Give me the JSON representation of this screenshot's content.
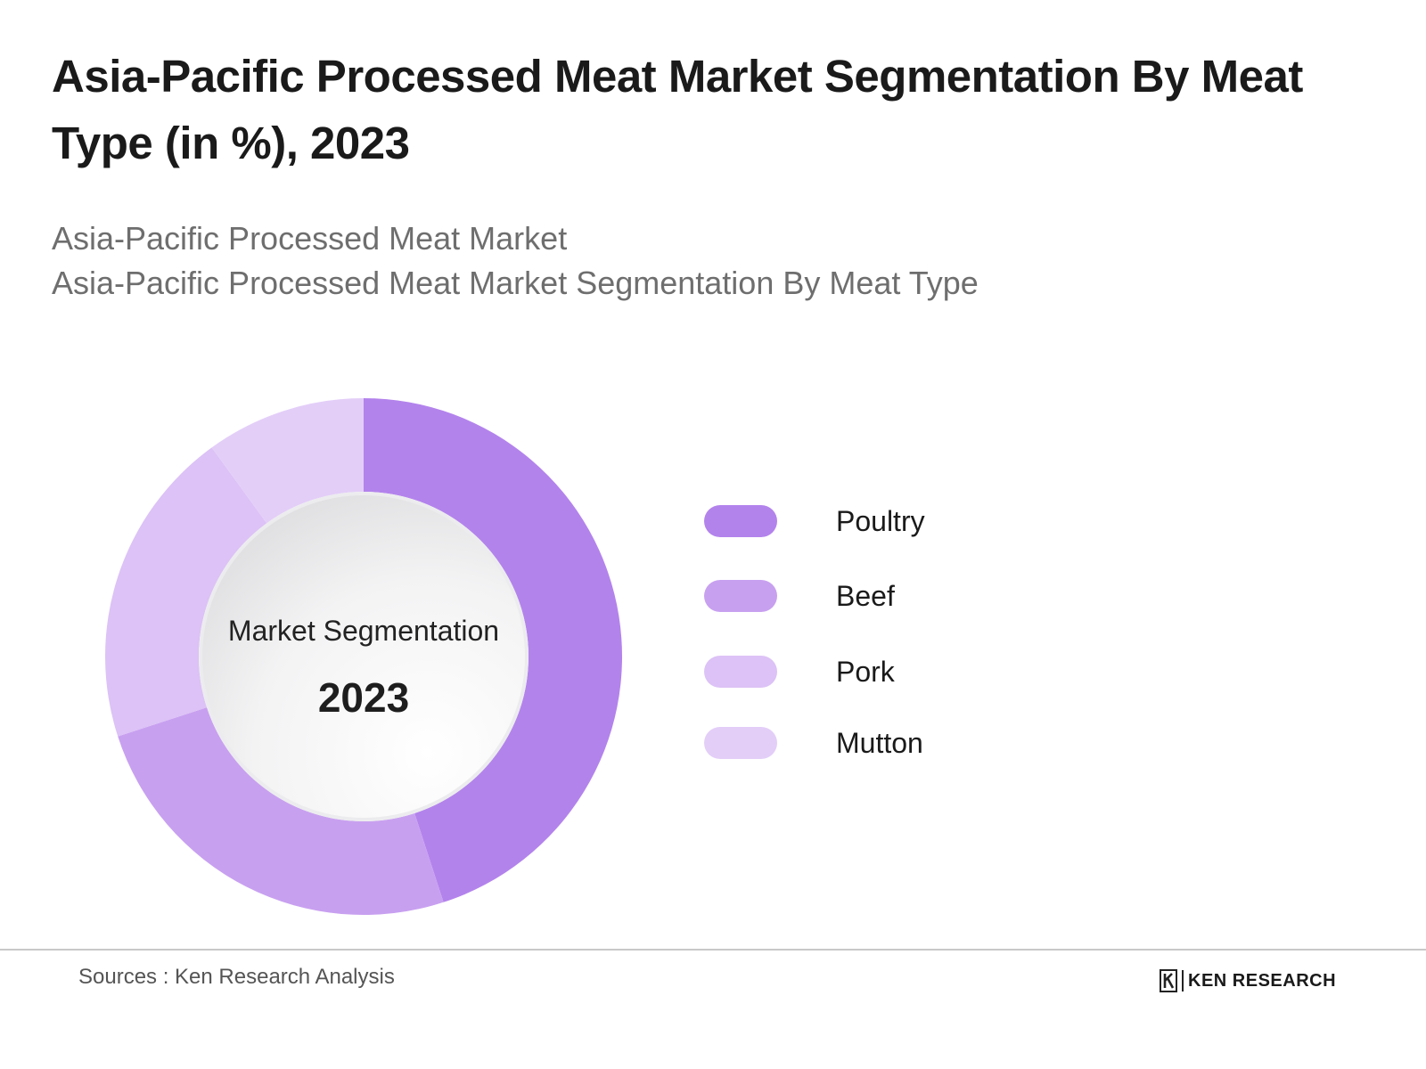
{
  "header": {
    "title": "Asia-Pacific Processed Meat Market Segmentation By Meat Type (in %), 2023",
    "subtitle_1": "Asia-Pacific Processed Meat Market",
    "subtitle_2": "Asia-Pacific Processed Meat Market Segmentation By Meat Type"
  },
  "center": {
    "label": "Market Segmentation",
    "year": "2023"
  },
  "chart_data": {
    "type": "pie",
    "style": "donut",
    "categories": [
      "Poultry",
      "Beef",
      "Pork",
      "Mutton"
    ],
    "values": [
      45,
      25,
      20,
      10
    ],
    "colors": [
      "#b383ec",
      "#c8a0f0",
      "#dcc2f6",
      "#e3cef8"
    ],
    "legend_position": "right"
  },
  "footer": {
    "source": "Sources : Ken Research Analysis",
    "logo_text": "KEN RESEARCH"
  }
}
